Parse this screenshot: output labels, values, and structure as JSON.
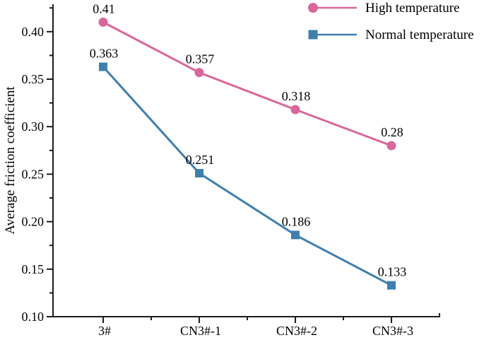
{
  "chart_data": {
    "type": "line",
    "title": "",
    "categories": [
      "3#",
      "CN3#-1",
      "CN3#-2",
      "CN3#-3"
    ],
    "xlabel": "",
    "ylabel": "Average friction coefficient",
    "ylim": [
      0.1,
      0.429
    ],
    "yticks": [
      "0.40",
      "0.35",
      "0.30",
      "0.25",
      "0.20",
      "0.15",
      "0.10"
    ],
    "ytick_minor_step": 0.025,
    "grid": false,
    "legend_position": "top-right",
    "axis_color": "#1c1c1c",
    "text_color": "#000000",
    "series": [
      {
        "name": "High temperature",
        "marker": "circle",
        "color": "#d9679b",
        "values": [
          0.41,
          0.357,
          0.318,
          0.28
        ],
        "point_labels": [
          "0.41",
          "0.357",
          "0.318",
          "0.28"
        ]
      },
      {
        "name": "Normal temperature",
        "marker": "square",
        "color": "#3e7fad",
        "values": [
          0.363,
          0.251,
          0.186,
          0.133
        ],
        "point_labels": [
          "0.363",
          "0.251",
          "0.186",
          "0.133"
        ]
      }
    ]
  }
}
